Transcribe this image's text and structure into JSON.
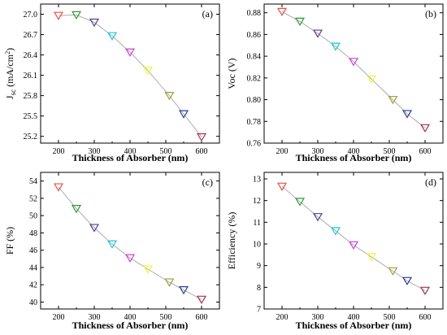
{
  "chart_data": [
    {
      "type": "line",
      "panel_label": "(a)",
      "xlabel": "Thickness of Absorber (nm)",
      "ylabel": "J",
      "ylabel_sub": "sc",
      "ylabel_rest": "(mA/cm",
      "ylabel_sup": "2",
      "ylabel_end": ")",
      "xlim": [
        150,
        650
      ],
      "ylim": [
        25.1,
        27.15
      ],
      "xticks": [
        "200",
        "300",
        "400",
        "500",
        "600"
      ],
      "yticks": [
        "25.2",
        "25.5",
        "25.8",
        "26.1",
        "26.4",
        "26.7",
        "27.0"
      ],
      "x": [
        200,
        250,
        300,
        350,
        400,
        450,
        510,
        550,
        600
      ],
      "y": [
        26.98,
        26.99,
        26.88,
        26.68,
        26.44,
        26.17,
        25.8,
        25.53,
        25.19
      ]
    },
    {
      "type": "line",
      "panel_label": "(b)",
      "xlabel": "Thickness of Absorber (nm)",
      "ylabel": "Voc (V)",
      "xlim": [
        150,
        650
      ],
      "ylim": [
        0.76,
        0.888
      ],
      "xticks": [
        "200",
        "300",
        "400",
        "500",
        "600"
      ],
      "yticks": [
        "0.76",
        "0.78",
        "0.80",
        "0.82",
        "0.84",
        "0.86",
        "0.88"
      ],
      "x": [
        200,
        250,
        300,
        350,
        400,
        450,
        510,
        550,
        600
      ],
      "y": [
        0.881,
        0.872,
        0.861,
        0.849,
        0.835,
        0.819,
        0.8,
        0.787,
        0.774
      ]
    },
    {
      "type": "line",
      "panel_label": "(c)",
      "xlabel": "Thickness of Absorber (nm)",
      "ylabel": "FF (%)",
      "xlim": [
        150,
        650
      ],
      "ylim": [
        39.2,
        55
      ],
      "xticks": [
        "200",
        "300",
        "400",
        "500",
        "600"
      ],
      "yticks": [
        "40",
        "42",
        "44",
        "46",
        "48",
        "50",
        "52",
        "54"
      ],
      "x": [
        200,
        250,
        300,
        350,
        400,
        450,
        510,
        550,
        600
      ],
      "y": [
        53.3,
        50.8,
        48.6,
        46.7,
        45.1,
        43.8,
        42.3,
        41.4,
        40.3
      ]
    },
    {
      "type": "line",
      "panel_label": "(d)",
      "xlabel": "Thickness of Absorber (nm)",
      "ylabel": "Efficiency (%)",
      "xlim": [
        150,
        650
      ],
      "ylim": [
        7,
        13.3
      ],
      "xticks": [
        "200",
        "300",
        "400",
        "500",
        "600"
      ],
      "yticks": [
        "7",
        "8",
        "9",
        "10",
        "11",
        "12",
        "13"
      ],
      "x": [
        200,
        250,
        300,
        350,
        400,
        450,
        510,
        550,
        600
      ],
      "y": [
        12.65,
        11.95,
        11.25,
        10.6,
        9.95,
        9.4,
        8.75,
        8.3,
        7.85
      ]
    }
  ],
  "marker_colors": [
    "#e8504a",
    "#2f9a2f",
    "#5a3e96",
    "#18c7d6",
    "#d63cd6",
    "#f2f23c",
    "#a0a03c",
    "#2a3d9a",
    "#a0325a"
  ],
  "line_color": "#9a9a9a"
}
